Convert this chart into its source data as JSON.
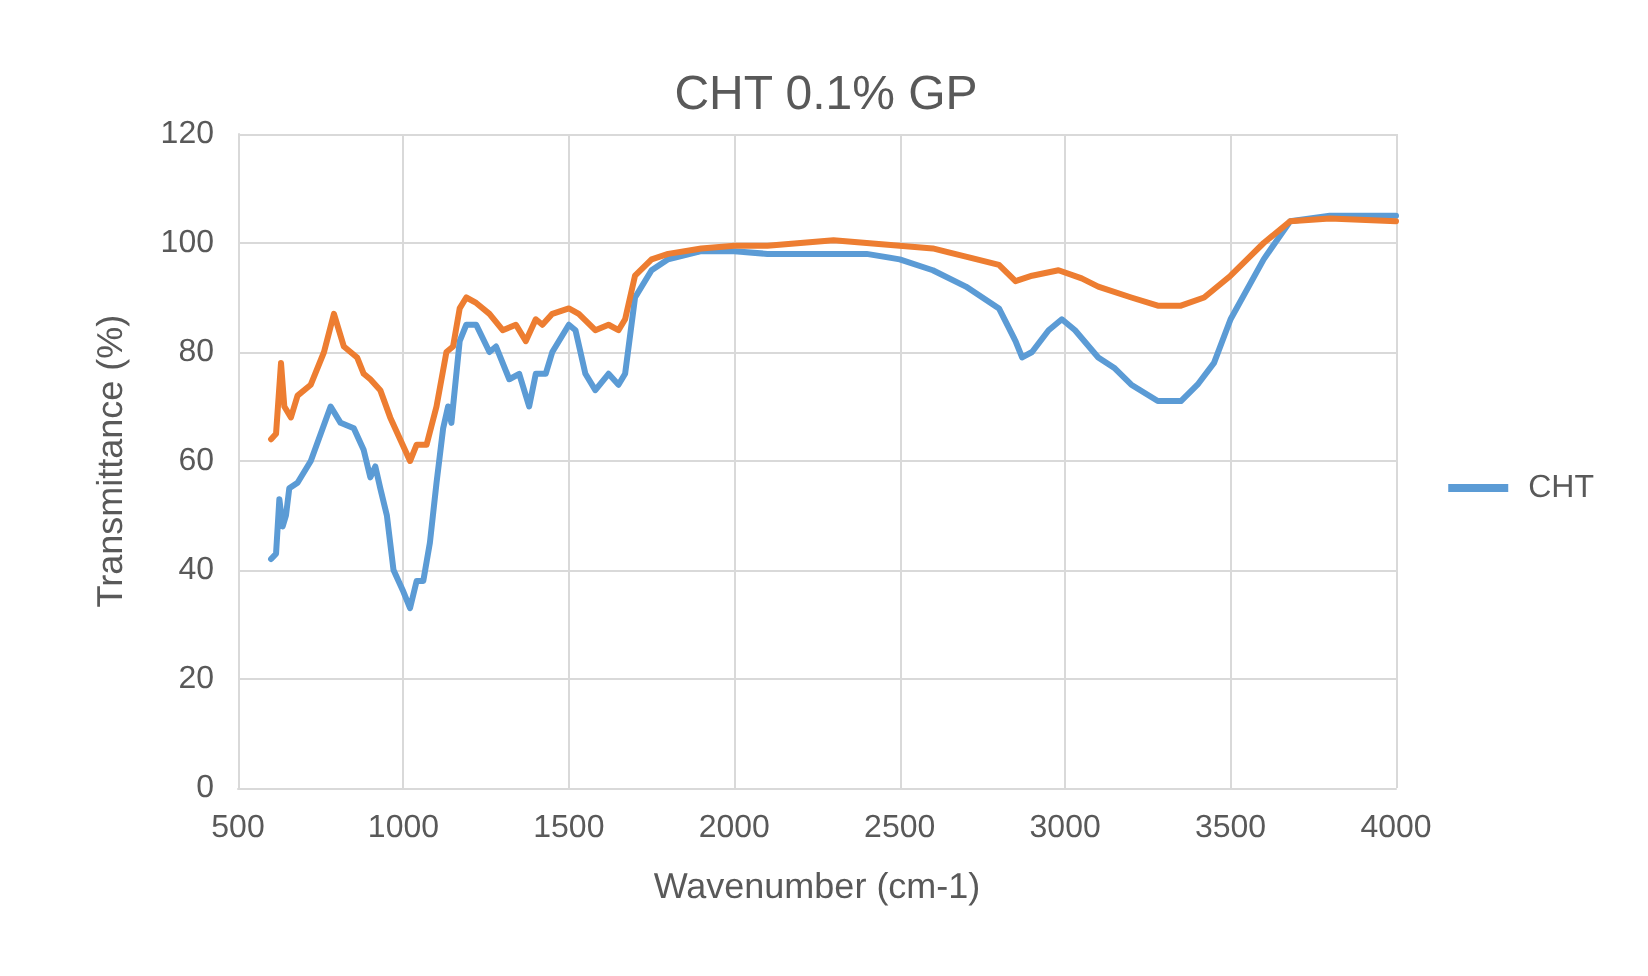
{
  "chart_data": {
    "type": "line",
    "title": "CHT 0.1% GP",
    "xlabel": "Wavenumber (cm-1)",
    "ylabel": "Transmittance (%)",
    "xlim": [
      500,
      4000
    ],
    "xticks": [
      500,
      1000,
      1500,
      2000,
      2500,
      3000,
      3500,
      4000
    ],
    "ylim": [
      0,
      120
    ],
    "yticks": [
      0,
      20,
      40,
      60,
      80,
      100,
      120
    ],
    "grid": true,
    "legend": "right",
    "marker": "none",
    "line_style": "solid",
    "series": [
      {
        "name": "CHT",
        "color": "#5b9bd5",
        "x": [
          600,
          615,
          625,
          635,
          645,
          655,
          680,
          720,
          780,
          810,
          850,
          880,
          900,
          915,
          930,
          950,
          970,
          1000,
          1020,
          1040,
          1060,
          1080,
          1100,
          1120,
          1135,
          1145,
          1170,
          1190,
          1220,
          1260,
          1280,
          1320,
          1350,
          1370,
          1380,
          1400,
          1430,
          1450,
          1500,
          1520,
          1550,
          1580,
          1620,
          1650,
          1670,
          1700,
          1750,
          1800,
          1900,
          2000,
          2100,
          2200,
          2300,
          2400,
          2500,
          2600,
          2700,
          2800,
          2850,
          2870,
          2900,
          2950,
          2990,
          3030,
          3100,
          3150,
          3200,
          3280,
          3320,
          3350,
          3400,
          3450,
          3500,
          3600,
          3680,
          3800,
          4000
        ],
        "values": [
          42,
          43,
          53,
          48,
          50,
          55,
          56,
          60,
          70,
          67,
          66,
          62,
          57,
          59,
          55,
          50,
          40,
          36,
          33,
          38,
          38,
          45,
          56,
          66,
          70,
          67,
          82,
          85,
          85,
          80,
          81,
          75,
          76,
          72,
          70,
          76,
          76,
          80,
          85,
          84,
          76,
          73,
          76,
          74,
          76,
          90,
          95,
          97,
          98.5,
          98.5,
          98,
          98,
          98,
          98,
          97,
          95,
          92,
          88,
          82,
          79,
          80,
          84,
          86,
          84,
          79,
          77,
          74,
          71,
          71,
          71,
          74,
          78,
          86,
          97,
          104,
          105,
          105
        ]
      },
      {
        "color": "#ed7d31",
        "x": [
          600,
          615,
          630,
          640,
          660,
          680,
          720,
          760,
          790,
          820,
          860,
          880,
          900,
          930,
          960,
          990,
          1020,
          1040,
          1070,
          1100,
          1130,
          1150,
          1170,
          1190,
          1220,
          1260,
          1300,
          1340,
          1370,
          1400,
          1420,
          1450,
          1500,
          1530,
          1580,
          1620,
          1650,
          1670,
          1700,
          1750,
          1800,
          1900,
          2000,
          2100,
          2200,
          2300,
          2400,
          2500,
          2600,
          2700,
          2800,
          2850,
          2900,
          2980,
          3050,
          3100,
          3200,
          3280,
          3350,
          3420,
          3500,
          3600,
          3680,
          3800,
          4000
        ],
        "values": [
          64,
          65,
          78,
          70,
          68,
          72,
          74,
          80,
          87,
          81,
          79,
          76,
          75,
          73,
          68,
          64,
          60,
          63,
          63,
          70,
          80,
          81,
          88,
          90,
          89,
          87,
          84,
          85,
          82,
          86,
          85,
          87,
          88,
          87,
          84,
          85,
          84,
          86,
          94,
          97,
          98,
          99,
          99.5,
          99.5,
          100,
          100.5,
          100,
          99.5,
          99,
          97.5,
          96,
          93,
          94,
          95,
          93.5,
          92,
          90,
          88.5,
          88.5,
          90,
          94,
          100,
          104,
          104.5,
          104
        ]
      }
    ]
  }
}
